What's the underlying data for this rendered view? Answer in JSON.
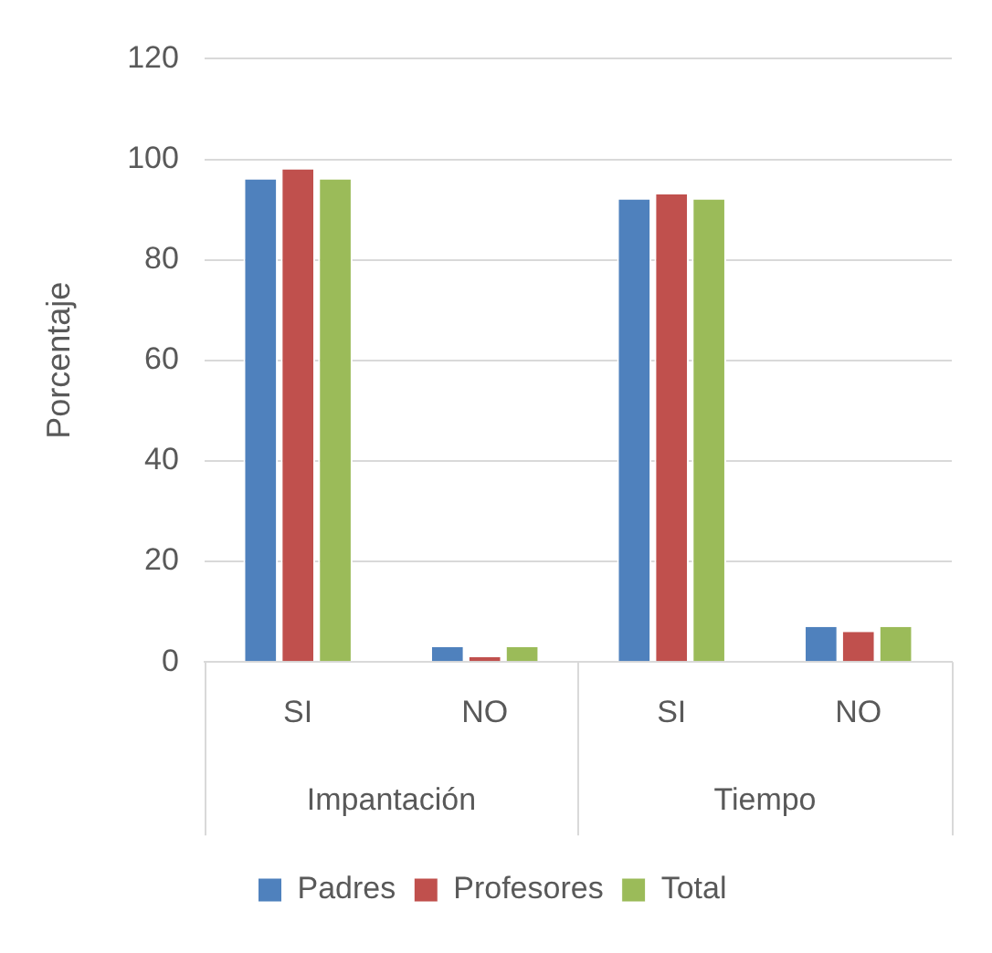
{
  "chart_data": {
    "type": "bar",
    "ylabel": "Porcentaje",
    "categories": [
      "SI",
      "NO",
      "SI",
      "NO"
    ],
    "annotations": [
      "Impantación",
      "Tiempo"
    ],
    "series": [
      {
        "name": "Padres",
        "color": "#4f81bd",
        "values": [
          96,
          3,
          92,
          7
        ]
      },
      {
        "name": "Profesores",
        "color": "#c0504d",
        "values": [
          98,
          1,
          93,
          6
        ]
      },
      {
        "name": "Total",
        "color": "#9bbb59",
        "values": [
          96,
          3,
          92,
          7
        ]
      }
    ],
    "ylim": [
      0,
      120
    ],
    "yticks": [
      0,
      20,
      40,
      60,
      80,
      100,
      120
    ],
    "grid": "y",
    "legend": "bottom"
  }
}
